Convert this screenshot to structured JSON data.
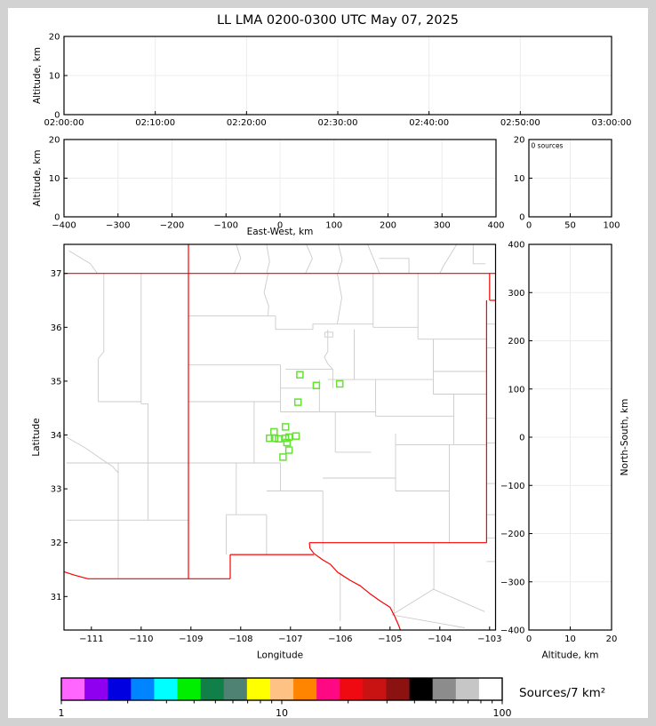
{
  "labels": {
    "altitude_km": "Altitude, km",
    "east_west": "East-West, km",
    "latitude": "Latitude",
    "longitude": "Longitude",
    "north_south": "North-South, km"
  },
  "chart_data": {
    "type": "multi-panel-lma",
    "title": "LL LMA 0200-0300 UTC May 07, 2025",
    "panels": {
      "time_height": {
        "type": "scatter",
        "ylabel": "Altitude, km",
        "ylim": [
          0,
          20
        ],
        "yticks": [
          0,
          10,
          20
        ],
        "xticks": [
          "02:00:00",
          "02:10:00",
          "02:20:00",
          "02:30:00",
          "02:40:00",
          "02:50:00",
          "03:00:00"
        ],
        "points": []
      },
      "lon_height": {
        "type": "scatter",
        "ylabel": "Altitude, km",
        "xlabel": "East-West, km",
        "ylim": [
          0,
          20
        ],
        "yticks": [
          0,
          10,
          20
        ],
        "xlim": [
          -400,
          400
        ],
        "xticks": [
          -400,
          -300,
          -200,
          -100,
          0,
          100,
          200,
          300,
          400
        ],
        "points": []
      },
      "source_histogram": {
        "type": "histogram",
        "annotation": "0 sources",
        "xlim": [
          0,
          100
        ],
        "xticks": [
          0,
          50,
          100
        ],
        "ylim": [
          0,
          20
        ],
        "yticks": [
          20,
          10,
          0
        ],
        "values": []
      },
      "plan_view": {
        "type": "scatter-map",
        "xlabel": "Longitude",
        "ylabel": "Latitude",
        "xlim": [
          -111.55,
          -102.87
        ],
        "ylim": [
          30.38,
          37.54
        ],
        "xticks": [
          -111,
          -110,
          -109,
          -108,
          -107,
          -106,
          -105,
          -104,
          -103
        ],
        "yticks": [
          31,
          32,
          33,
          34,
          35,
          36,
          37
        ],
        "markers": [
          {
            "lon": -106.81,
            "lat": 35.12
          },
          {
            "lon": -106.48,
            "lat": 34.92
          },
          {
            "lon": -106.01,
            "lat": 34.95
          },
          {
            "lon": -106.85,
            "lat": 34.61
          },
          {
            "lon": -107.1,
            "lat": 34.15
          },
          {
            "lon": -107.33,
            "lat": 34.06
          },
          {
            "lon": -107.42,
            "lat": 33.94
          },
          {
            "lon": -107.32,
            "lat": 33.94
          },
          {
            "lon": -107.24,
            "lat": 33.93
          },
          {
            "lon": -107.1,
            "lat": 33.94
          },
          {
            "lon": -107.03,
            "lat": 33.96
          },
          {
            "lon": -106.89,
            "lat": 33.98
          },
          {
            "lon": -107.07,
            "lat": 33.86
          },
          {
            "lon": -107.03,
            "lat": 33.72
          },
          {
            "lon": -107.15,
            "lat": 33.59
          }
        ],
        "marker_style": {
          "shape": "open-square",
          "color": "#64e332",
          "size": 7
        }
      },
      "height_lat": {
        "type": "scatter",
        "xlabel": "Altitude, km",
        "right_label": "North-South, km",
        "xlim": [
          0,
          20
        ],
        "xticks": [
          0,
          10,
          20
        ],
        "ylim": [
          -400,
          400
        ],
        "yticks": [
          400,
          300,
          200,
          100,
          0,
          -100,
          -200,
          -300,
          -400
        ],
        "points": []
      }
    },
    "colorbar": {
      "label": "Sources/7 km²",
      "scale": "log",
      "range": [
        1,
        100
      ],
      "ticks": [
        1,
        10,
        100
      ],
      "colors": [
        "#ff66ff",
        "#8f00f0",
        "#0000e0",
        "#0084ff",
        "#00ffff",
        "#00ee00",
        "#118048",
        "#4f8273",
        "#ffff00",
        "#ffc285",
        "#ff8400",
        "#ff0884",
        "#ee0a10",
        "#c91212",
        "#8c1111",
        "#000000",
        "#8c8c8c",
        "#c6c6c6",
        "#ffffff"
      ]
    }
  },
  "map_geo": {
    "state_border_color": "#fa0000",
    "county_color": "#cbcbcb",
    "state_lines": [
      [
        [
          -111.55,
          37.0
        ],
        [
          -102.88,
          37.0
        ]
      ],
      [
        [
          -109.05,
          37.54
        ],
        [
          -109.05,
          31.33
        ]
      ],
      [
        [
          -103.0,
          37.0
        ],
        [
          -103.0,
          36.5
        ]
      ],
      [
        [
          -103.0,
          36.5
        ],
        [
          -102.88,
          36.5
        ]
      ],
      [
        [
          -103.06,
          36.5
        ],
        [
          -103.06,
          32.0
        ]
      ],
      [
        [
          -103.06,
          32.0
        ],
        [
          -106.62,
          32.0
        ]
      ],
      [
        [
          -106.62,
          32.0
        ],
        [
          -106.61,
          31.9
        ],
        [
          -106.53,
          31.8
        ]
      ],
      [
        [
          -106.53,
          31.78
        ],
        [
          -108.21,
          31.78
        ]
      ],
      [
        [
          -108.21,
          31.78
        ],
        [
          -108.21,
          31.33
        ]
      ],
      [
        [
          -108.21,
          31.33
        ],
        [
          -109.05,
          31.33
        ]
      ],
      [
        [
          -109.05,
          31.33
        ],
        [
          -111.07,
          31.33
        ],
        [
          -111.35,
          31.4
        ],
        [
          -111.55,
          31.46
        ]
      ],
      [
        [
          -106.53,
          31.8
        ],
        [
          -106.35,
          31.68
        ],
        [
          -106.2,
          31.6
        ],
        [
          -106.05,
          31.45
        ],
        [
          -105.8,
          31.3
        ],
        [
          -105.6,
          31.2
        ],
        [
          -105.4,
          31.05
        ],
        [
          -105.2,
          30.92
        ],
        [
          -105.0,
          30.8
        ],
        [
          -104.9,
          30.62
        ],
        [
          -104.82,
          30.45
        ],
        [
          -104.77,
          30.31
        ]
      ]
    ],
    "county_lines": [
      [
        [
          -111.45,
          37.42
        ],
        [
          -111.02,
          37.18
        ],
        [
          -110.88,
          37.0
        ]
      ],
      [
        [
          -108.09,
          37.54
        ],
        [
          -108.0,
          37.28
        ],
        [
          -108.13,
          37.0
        ]
      ],
      [
        [
          -107.48,
          37.54
        ],
        [
          -107.42,
          37.22
        ],
        [
          -107.48,
          37.0
        ]
      ],
      [
        [
          -106.68,
          37.54
        ],
        [
          -106.56,
          37.28
        ],
        [
          -106.7,
          37.0
        ]
      ],
      [
        [
          -106.04,
          37.54
        ],
        [
          -105.96,
          37.25
        ],
        [
          -106.05,
          37.0
        ]
      ],
      [
        [
          -105.45,
          37.54
        ],
        [
          -105.21,
          37.0
        ]
      ],
      [
        [
          -105.22,
          37.28
        ],
        [
          -104.62,
          37.28
        ],
        [
          -104.62,
          37.0
        ]
      ],
      [
        [
          -103.66,
          37.54
        ],
        [
          -103.94,
          37.12
        ],
        [
          -104.0,
          37.0
        ]
      ],
      [
        [
          -103.33,
          37.54
        ],
        [
          -103.33,
          37.18
        ],
        [
          -103.08,
          37.18
        ]
      ],
      [
        [
          -110.75,
          37.0
        ],
        [
          -110.75,
          35.55
        ],
        [
          -110.86,
          35.42
        ],
        [
          -110.86,
          34.62
        ]
      ],
      [
        [
          -110.0,
          37.0
        ],
        [
          -110.0,
          34.58
        ]
      ],
      [
        [
          -110.86,
          34.62
        ],
        [
          -110.0,
          34.62
        ]
      ],
      [
        [
          -110.0,
          34.58
        ],
        [
          -109.86,
          34.58
        ],
        [
          -109.86,
          32.42
        ]
      ],
      [
        [
          -111.5,
          33.96
        ],
        [
          -111.12,
          33.76
        ],
        [
          -110.84,
          33.58
        ],
        [
          -110.58,
          33.42
        ],
        [
          -110.46,
          33.3
        ]
      ],
      [
        [
          -111.5,
          33.48
        ],
        [
          -107.2,
          33.48
        ]
      ],
      [
        [
          -110.46,
          33.48
        ],
        [
          -110.46,
          31.34
        ]
      ],
      [
        [
          -111.5,
          32.42
        ],
        [
          -109.05,
          32.42
        ]
      ],
      [
        [
          -109.05,
          36.21
        ],
        [
          -107.45,
          36.21
        ]
      ],
      [
        [
          -107.45,
          37.0
        ],
        [
          -107.53,
          36.64
        ],
        [
          -107.44,
          36.4
        ],
        [
          -107.45,
          36.21
        ]
      ],
      [
        [
          -107.45,
          36.21
        ],
        [
          -107.3,
          36.21
        ],
        [
          -107.3,
          35.96
        ],
        [
          -106.55,
          35.96
        ],
        [
          -106.55,
          36.06
        ],
        [
          -106.06,
          36.06
        ]
      ],
      [
        [
          -106.06,
          37.0
        ],
        [
          -105.97,
          36.55
        ],
        [
          -106.06,
          36.06
        ]
      ],
      [
        [
          -106.06,
          36.06
        ],
        [
          -105.34,
          36.06
        ]
      ],
      [
        [
          -105.34,
          37.0
        ],
        [
          -105.34,
          36.0
        ]
      ],
      [
        [
          -105.34,
          36.0
        ],
        [
          -104.44,
          36.0
        ]
      ],
      [
        [
          -104.44,
          37.0
        ],
        [
          -104.44,
          35.78
        ]
      ],
      [
        [
          -104.44,
          35.78
        ],
        [
          -103.06,
          35.78
        ]
      ],
      [
        [
          -109.05,
          35.3
        ],
        [
          -107.2,
          35.3
        ]
      ],
      [
        [
          -107.2,
          35.3
        ],
        [
          -107.2,
          34.43
        ]
      ],
      [
        [
          -107.1,
          35.22
        ],
        [
          -106.15,
          35.22
        ]
      ],
      [
        [
          -107.2,
          34.87
        ],
        [
          -106.42,
          34.87
        ]
      ],
      [
        [
          -106.15,
          35.22
        ],
        [
          -106.15,
          34.87
        ]
      ],
      [
        [
          -106.25,
          35.96
        ],
        [
          -106.25,
          35.55
        ],
        [
          -106.32,
          35.45
        ],
        [
          -106.25,
          35.32
        ],
        [
          -106.15,
          35.22
        ]
      ],
      [
        [
          -106.31,
          35.91
        ],
        [
          -106.15,
          35.91
        ],
        [
          -106.15,
          35.82
        ],
        [
          -106.31,
          35.82
        ],
        [
          -106.31,
          35.91
        ]
      ],
      [
        [
          -105.72,
          35.96
        ],
        [
          -105.72,
          35.03
        ]
      ],
      [
        [
          -106.25,
          35.03
        ],
        [
          -104.13,
          35.03
        ]
      ],
      [
        [
          -106.42,
          35.03
        ],
        [
          -106.42,
          34.43
        ]
      ],
      [
        [
          -109.05,
          34.62
        ],
        [
          -107.2,
          34.62
        ]
      ],
      [
        [
          -107.73,
          34.62
        ],
        [
          -107.73,
          33.48
        ]
      ],
      [
        [
          -107.2,
          34.43
        ],
        [
          -105.29,
          34.43
        ]
      ],
      [
        [
          -105.29,
          35.03
        ],
        [
          -105.29,
          34.35
        ]
      ],
      [
        [
          -104.13,
          35.78
        ],
        [
          -104.13,
          34.76
        ],
        [
          -103.06,
          34.76
        ]
      ],
      [
        [
          -104.13,
          35.18
        ],
        [
          -103.06,
          35.18
        ]
      ],
      [
        [
          -103.72,
          34.76
        ],
        [
          -103.72,
          33.82
        ]
      ],
      [
        [
          -105.29,
          34.35
        ],
        [
          -103.72,
          34.35
        ]
      ],
      [
        [
          -106.1,
          34.43
        ],
        [
          -106.1,
          33.68
        ]
      ],
      [
        [
          -106.1,
          33.68
        ],
        [
          -105.38,
          33.68
        ]
      ],
      [
        [
          -104.89,
          34.02
        ],
        [
          -104.89,
          32.96
        ]
      ],
      [
        [
          -104.89,
          33.82
        ],
        [
          -103.06,
          33.82
        ]
      ],
      [
        [
          -103.81,
          33.82
        ],
        [
          -103.81,
          32.0
        ]
      ],
      [
        [
          -104.89,
          32.96
        ],
        [
          -103.81,
          32.96
        ]
      ],
      [
        [
          -106.35,
          33.2
        ],
        [
          -104.89,
          33.2
        ]
      ],
      [
        [
          -108.29,
          32.52
        ],
        [
          -108.29,
          31.78
        ]
      ],
      [
        [
          -108.29,
          32.52
        ],
        [
          -107.48,
          32.52
        ]
      ],
      [
        [
          -107.48,
          32.52
        ],
        [
          -107.48,
          31.78
        ]
      ],
      [
        [
          -108.09,
          33.48
        ],
        [
          -108.09,
          32.52
        ]
      ],
      [
        [
          -107.48,
          32.96
        ],
        [
          -106.35,
          32.96
        ]
      ],
      [
        [
          -107.2,
          33.48
        ],
        [
          -107.2,
          32.96
        ]
      ],
      [
        [
          -106.35,
          32.96
        ],
        [
          -106.35,
          31.82
        ]
      ],
      [
        [
          -106.0,
          31.45
        ],
        [
          -106.0,
          30.55
        ]
      ],
      [
        [
          -104.92,
          32.0
        ],
        [
          -104.92,
          30.64
        ]
      ],
      [
        [
          -104.12,
          31.14
        ],
        [
          -104.96,
          30.66
        ]
      ],
      [
        [
          -104.96,
          30.66
        ],
        [
          -103.5,
          30.42
        ]
      ],
      [
        [
          -104.14,
          31.14
        ],
        [
          -103.1,
          30.72
        ]
      ],
      [
        [
          -104.12,
          32.0
        ],
        [
          -104.12,
          31.14
        ]
      ],
      [
        [
          -103.06,
          36.06
        ],
        [
          -102.88,
          36.06
        ]
      ],
      [
        [
          -103.06,
          35.62
        ],
        [
          -102.88,
          35.62
        ]
      ],
      [
        [
          -103.06,
          34.31
        ],
        [
          -102.88,
          34.31
        ]
      ],
      [
        [
          -103.06,
          33.85
        ],
        [
          -102.88,
          33.85
        ]
      ],
      [
        [
          -103.06,
          33.1
        ],
        [
          -102.88,
          33.1
        ]
      ],
      [
        [
          -103.06,
          32.52
        ],
        [
          -102.88,
          32.52
        ]
      ],
      [
        [
          -103.06,
          32.09
        ],
        [
          -102.88,
          32.09
        ]
      ],
      [
        [
          -103.06,
          31.65
        ],
        [
          -102.88,
          31.65
        ]
      ]
    ]
  }
}
